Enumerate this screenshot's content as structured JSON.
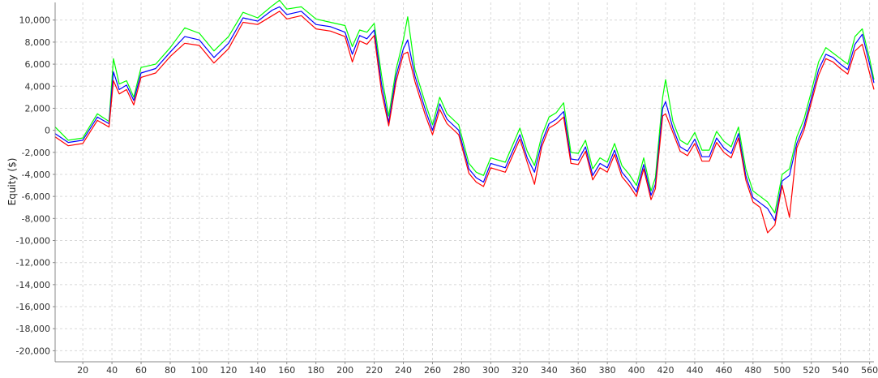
{
  "chart_data": {
    "type": "line",
    "title": "",
    "xlabel": "",
    "ylabel": "Equity ($)",
    "xlim": [
      1,
      563
    ],
    "ylim": [
      -21000,
      11600
    ],
    "grid": true,
    "legend": "none",
    "x_ticks": [
      20,
      40,
      60,
      80,
      100,
      120,
      140,
      160,
      180,
      200,
      220,
      240,
      260,
      280,
      300,
      320,
      340,
      360,
      380,
      400,
      420,
      440,
      460,
      480,
      500,
      520,
      540,
      560
    ],
    "y_ticks": [
      10000,
      8000,
      6000,
      4000,
      2000,
      0,
      -2000,
      -4000,
      -6000,
      -8000,
      -10000,
      -12000,
      -14000,
      -16000,
      -18000,
      -20000
    ],
    "y_tick_labels": [
      "10,000",
      "8,000",
      "6,000",
      "4,000",
      "2,000",
      "0",
      "-2,000",
      "-4,000",
      "-6,000",
      "-8,000",
      "-10,000",
      "-12,000",
      "-14,000",
      "-16,000",
      "-18,000",
      "-20,000"
    ],
    "x_tick_labels": [
      "20",
      "40",
      "60",
      "80",
      "100",
      "120",
      "140",
      "160",
      "180",
      "200",
      "220",
      "240",
      "260",
      "280",
      "300",
      "320",
      "340",
      "360",
      "380",
      "400",
      "420",
      "440",
      "460",
      "480",
      "500",
      "520",
      "540",
      "560"
    ],
    "series": [
      {
        "color": "#00ff00",
        "x": [
          1,
          10,
          20,
          30,
          38,
          41,
          45,
          50,
          55,
          60,
          70,
          80,
          90,
          100,
          110,
          120,
          130,
          140,
          150,
          155,
          160,
          170,
          180,
          190,
          200,
          205,
          210,
          215,
          220,
          225,
          230,
          235,
          240,
          243,
          248,
          255,
          260,
          265,
          270,
          278,
          285,
          290,
          295,
          300,
          310,
          320,
          325,
          330,
          335,
          340,
          345,
          350,
          355,
          360,
          365,
          370,
          375,
          380,
          385,
          390,
          395,
          400,
          405,
          410,
          413,
          418,
          420,
          425,
          430,
          435,
          440,
          445,
          450,
          455,
          460,
          465,
          470,
          475,
          480,
          485,
          490,
          495,
          500,
          505,
          510,
          515,
          520,
          525,
          530,
          535,
          540,
          545,
          550,
          555,
          560,
          563
        ],
        "y": [
          300,
          -900,
          -700,
          1500,
          800,
          6500,
          4200,
          4500,
          3000,
          5700,
          6000,
          7500,
          9300,
          8800,
          7200,
          8500,
          10700,
          10200,
          11300,
          11800,
          11000,
          11200,
          10100,
          9800,
          9500,
          7600,
          9100,
          8900,
          9700,
          5000,
          1300,
          5500,
          8200,
          10300,
          5500,
          2500,
          500,
          3000,
          1500,
          500,
          -3000,
          -3800,
          -4100,
          -2500,
          -2900,
          200,
          -1900,
          -3200,
          -500,
          1200,
          1600,
          2500,
          -2000,
          -2100,
          -900,
          -3500,
          -2500,
          -2900,
          -1200,
          -3200,
          -4000,
          -5000,
          -2500,
          -5500,
          -4300,
          3000,
          4600,
          800,
          -900,
          -1300,
          -200,
          -1800,
          -1800,
          -100,
          -1000,
          -1500,
          300,
          -3500,
          -5500,
          -6000,
          -6500,
          -7500,
          -4000,
          -3500,
          -600,
          1000,
          3500,
          6200,
          7500,
          7000,
          6500,
          6000,
          8500,
          9200,
          6500,
          4600
        ]
      },
      {
        "color": "#0000ff",
        "x": [
          1,
          10,
          20,
          30,
          38,
          41,
          45,
          50,
          55,
          60,
          70,
          80,
          90,
          100,
          110,
          120,
          130,
          140,
          150,
          155,
          160,
          170,
          180,
          190,
          200,
          205,
          210,
          215,
          220,
          225,
          230,
          235,
          240,
          243,
          248,
          255,
          260,
          265,
          270,
          278,
          285,
          290,
          295,
          300,
          310,
          320,
          325,
          330,
          335,
          340,
          345,
          350,
          355,
          360,
          365,
          370,
          375,
          380,
          385,
          390,
          395,
          400,
          405,
          410,
          413,
          418,
          420,
          425,
          430,
          435,
          440,
          445,
          450,
          455,
          460,
          465,
          470,
          475,
          480,
          485,
          490,
          495,
          500,
          505,
          510,
          515,
          520,
          525,
          530,
          535,
          540,
          545,
          550,
          555,
          560,
          563
        ],
        "y": [
          -300,
          -1100,
          -900,
          1200,
          600,
          5300,
          3700,
          4100,
          2700,
          5200,
          5600,
          7100,
          8500,
          8200,
          6600,
          7900,
          10200,
          9900,
          10900,
          11200,
          10500,
          10800,
          9600,
          9400,
          8900,
          6900,
          8600,
          8300,
          9100,
          4200,
          700,
          4900,
          7400,
          8200,
          4900,
          1900,
          0,
          2400,
          1000,
          0,
          -3500,
          -4300,
          -4700,
          -3000,
          -3400,
          -400,
          -2500,
          -3800,
          -1100,
          600,
          1000,
          1700,
          -2600,
          -2700,
          -1500,
          -4100,
          -3000,
          -3400,
          -1800,
          -3800,
          -4600,
          -5600,
          -3100,
          -5900,
          -4900,
          2000,
          2600,
          200,
          -1500,
          -1900,
          -800,
          -2400,
          -2400,
          -700,
          -1600,
          -2100,
          -300,
          -4100,
          -6100,
          -6600,
          -7100,
          -8200,
          -4600,
          -4100,
          -1200,
          400,
          2900,
          5500,
          6900,
          6600,
          6000,
          5500,
          7800,
          8700,
          6000,
          4300
        ]
      },
      {
        "color": "#ff0000",
        "x": [
          1,
          10,
          20,
          30,
          38,
          41,
          45,
          50,
          55,
          60,
          70,
          80,
          90,
          100,
          110,
          120,
          130,
          140,
          150,
          155,
          160,
          170,
          180,
          190,
          200,
          205,
          210,
          215,
          220,
          225,
          230,
          235,
          240,
          243,
          248,
          255,
          260,
          265,
          270,
          278,
          285,
          290,
          295,
          300,
          310,
          320,
          325,
          330,
          335,
          340,
          345,
          350,
          355,
          360,
          365,
          370,
          375,
          380,
          385,
          390,
          395,
          400,
          405,
          410,
          413,
          418,
          420,
          425,
          430,
          435,
          440,
          445,
          450,
          455,
          460,
          465,
          470,
          475,
          480,
          485,
          490,
          495,
          500,
          505,
          510,
          515,
          520,
          525,
          530,
          535,
          540,
          545,
          550,
          555,
          560,
          563
        ],
        "y": [
          -600,
          -1400,
          -1200,
          900,
          300,
          4500,
          3300,
          3700,
          2300,
          4800,
          5200,
          6700,
          7900,
          7700,
          6100,
          7400,
          9800,
          9600,
          10400,
          10800,
          10100,
          10400,
          9200,
          9000,
          8500,
          6200,
          8100,
          7800,
          8600,
          3500,
          400,
          4400,
          6900,
          7100,
          4400,
          1400,
          -400,
          1900,
          600,
          -400,
          -3900,
          -4700,
          -5100,
          -3400,
          -3800,
          -800,
          -2900,
          -4900,
          -1500,
          200,
          600,
          1200,
          -3000,
          -3100,
          -1900,
          -4500,
          -3400,
          -3800,
          -2200,
          -4200,
          -5000,
          -6000,
          -3500,
          -6300,
          -5300,
          1300,
          1500,
          -200,
          -1900,
          -2300,
          -1200,
          -2800,
          -2800,
          -1100,
          -2000,
          -2500,
          -700,
          -4500,
          -6500,
          -7000,
          -9300,
          -8600,
          -5000,
          -7900,
          -1600,
          0,
          2500,
          5000,
          6500,
          6200,
          5600,
          5100,
          7200,
          7800,
          5200,
          3700
        ]
      }
    ]
  }
}
